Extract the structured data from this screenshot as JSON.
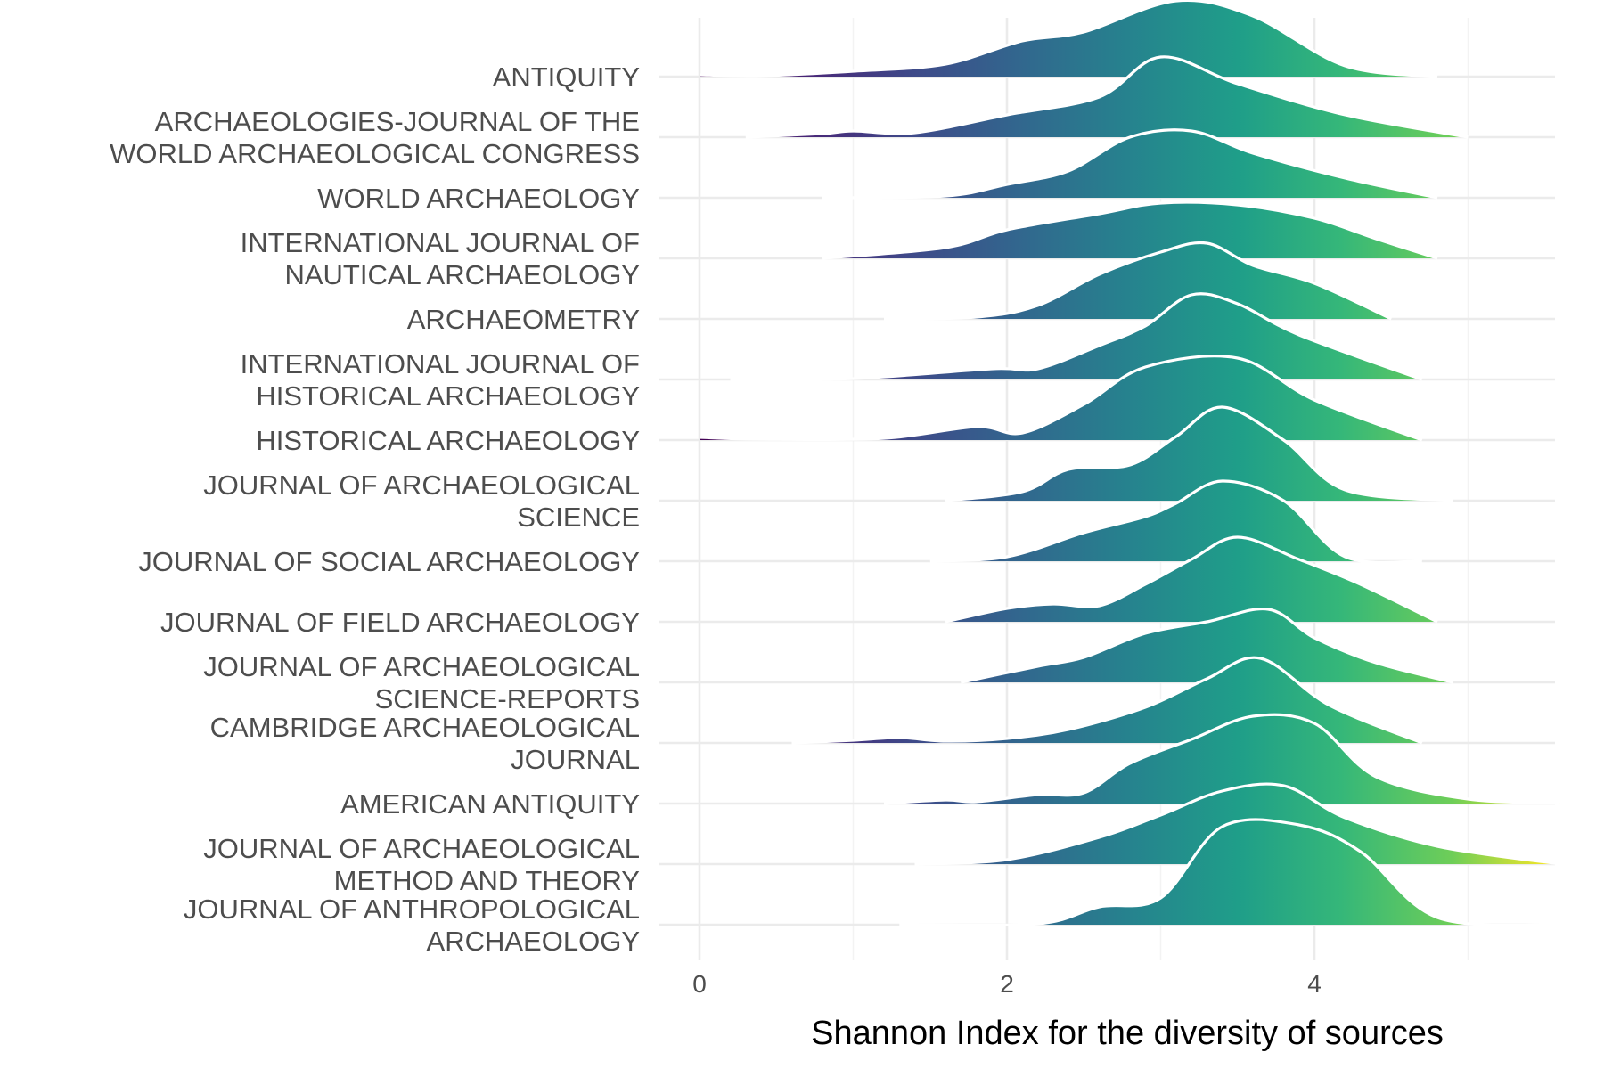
{
  "chart_data": {
    "type": "ridgeline",
    "title": "",
    "xlabel": "Shannon Index for the diversity of sources",
    "ylabel": "",
    "xlim": [
      0,
      5.6
    ],
    "x_ticks": [
      0,
      2,
      4
    ],
    "x_tick_labels": [
      "0",
      "2",
      "4"
    ],
    "grid": true,
    "legend": "none",
    "fill_gradient": "viridis",
    "categories": [
      "ANTIQUITY",
      "ARCHAEOLOGIES-JOURNAL OF THE\nWORLD ARCHAEOLOGICAL CONGRESS",
      "WORLD ARCHAEOLOGY",
      "INTERNATIONAL JOURNAL OF\nNAUTICAL ARCHAEOLOGY",
      "ARCHAEOMETRY",
      "INTERNATIONAL JOURNAL OF\nHISTORICAL ARCHAEOLOGY",
      "HISTORICAL ARCHAEOLOGY",
      "JOURNAL OF ARCHAEOLOGICAL\nSCIENCE",
      "JOURNAL OF SOCIAL ARCHAEOLOGY",
      "JOURNAL OF FIELD ARCHAEOLOGY",
      "JOURNAL OF ARCHAEOLOGICAL\nSCIENCE-REPORTS",
      "CAMBRIDGE ARCHAEOLOGICAL\nJOURNAL",
      "AMERICAN ANTIQUITY",
      "JOURNAL OF ARCHAEOLOGICAL\nMETHOD AND THEORY",
      "JOURNAL OF ANTHROPOLOGICAL\nARCHAEOLOGY"
    ],
    "series": [
      {
        "x": [
          0,
          0.4,
          1.0,
          1.6,
          2.1,
          2.5,
          3.1,
          3.6,
          4.2,
          4.8
        ],
        "y": [
          0.02,
          0.01,
          0.06,
          0.14,
          0.4,
          0.5,
          0.85,
          0.68,
          0.12,
          0
        ]
      },
      {
        "x": [
          0.3,
          0.8,
          1.0,
          1.4,
          2.0,
          2.6,
          3.0,
          3.5,
          4.2,
          5.0
        ],
        "y": [
          0,
          0.04,
          0.07,
          0.05,
          0.25,
          0.45,
          0.9,
          0.6,
          0.25,
          0
        ]
      },
      {
        "x": [
          0.8,
          1.6,
          2.0,
          2.4,
          2.8,
          3.2,
          3.6,
          4.2,
          4.8
        ],
        "y": [
          0,
          0.02,
          0.15,
          0.3,
          0.68,
          0.75,
          0.5,
          0.22,
          0
        ]
      },
      {
        "x": [
          0.8,
          1.6,
          2.0,
          2.6,
          3.0,
          3.5,
          4.0,
          4.4,
          4.8
        ],
        "y": [
          0,
          0.12,
          0.32,
          0.5,
          0.62,
          0.6,
          0.45,
          0.22,
          0
        ]
      },
      {
        "x": [
          1.2,
          1.8,
          2.2,
          2.6,
          3.0,
          3.3,
          3.6,
          4.0,
          4.5
        ],
        "y": [
          0,
          0.02,
          0.15,
          0.5,
          0.75,
          0.85,
          0.6,
          0.4,
          0
        ]
      },
      {
        "x": [
          0.2,
          1.0,
          1.9,
          2.2,
          2.6,
          2.9,
          3.2,
          3.5,
          3.9,
          4.7
        ],
        "y": [
          0,
          0.01,
          0.12,
          0.12,
          0.38,
          0.6,
          0.95,
          0.85,
          0.5,
          0
        ]
      },
      {
        "x": [
          0,
          0.4,
          1.2,
          1.8,
          2.1,
          2.5,
          2.9,
          3.5,
          4.0,
          4.7
        ],
        "y": [
          0.03,
          0.01,
          0.02,
          0.15,
          0.08,
          0.4,
          0.82,
          0.92,
          0.45,
          0
        ]
      },
      {
        "x": [
          1.6,
          2.1,
          2.4,
          2.8,
          3.1,
          3.4,
          3.8,
          4.2,
          4.9
        ],
        "y": [
          0,
          0.1,
          0.35,
          0.4,
          0.72,
          1.05,
          0.68,
          0.12,
          0
        ]
      },
      {
        "x": [
          1.5,
          2.0,
          2.5,
          2.9,
          3.1,
          3.4,
          3.8,
          4.2,
          4.7
        ],
        "y": [
          0,
          0.05,
          0.32,
          0.5,
          0.65,
          0.9,
          0.68,
          0.05,
          0
        ]
      },
      {
        "x": [
          1.6,
          2.0,
          2.3,
          2.6,
          2.9,
          3.2,
          3.5,
          3.9,
          4.3,
          4.8
        ],
        "y": [
          0,
          0.15,
          0.2,
          0.18,
          0.42,
          0.7,
          0.95,
          0.7,
          0.42,
          0
        ]
      },
      {
        "x": [
          1.7,
          2.2,
          2.5,
          2.9,
          3.3,
          3.7,
          4.0,
          4.4,
          4.9
        ],
        "y": [
          0,
          0.18,
          0.28,
          0.55,
          0.68,
          0.82,
          0.5,
          0.22,
          0
        ]
      },
      {
        "x": [
          0.6,
          1.0,
          1.3,
          1.6,
          2.0,
          2.4,
          2.9,
          3.3,
          3.65,
          4.1,
          4.7
        ],
        "y": [
          0,
          0.03,
          0.06,
          0.02,
          0.05,
          0.15,
          0.4,
          0.72,
          0.95,
          0.42,
          0
        ]
      },
      {
        "x": [
          1.2,
          1.6,
          1.8,
          2.2,
          2.5,
          2.8,
          3.2,
          3.6,
          4.0,
          4.4,
          5.0,
          5.6
        ],
        "y": [
          0,
          0.04,
          0.02,
          0.1,
          0.12,
          0.45,
          0.72,
          0.98,
          0.9,
          0.3,
          0.05,
          0.01
        ]
      },
      {
        "x": [
          1.4,
          2.0,
          2.6,
          3.0,
          3.4,
          3.8,
          4.2,
          4.8,
          5.6
        ],
        "y": [
          0,
          0.05,
          0.3,
          0.55,
          0.82,
          0.88,
          0.52,
          0.2,
          0
        ]
      },
      {
        "x": [
          1.3,
          2.2,
          2.6,
          3.0,
          3.4,
          3.9,
          4.3,
          4.8,
          5.6
        ],
        "y": [
          0,
          0.01,
          0.2,
          0.3,
          1.1,
          1.12,
          0.82,
          0.08,
          0
        ]
      }
    ]
  }
}
